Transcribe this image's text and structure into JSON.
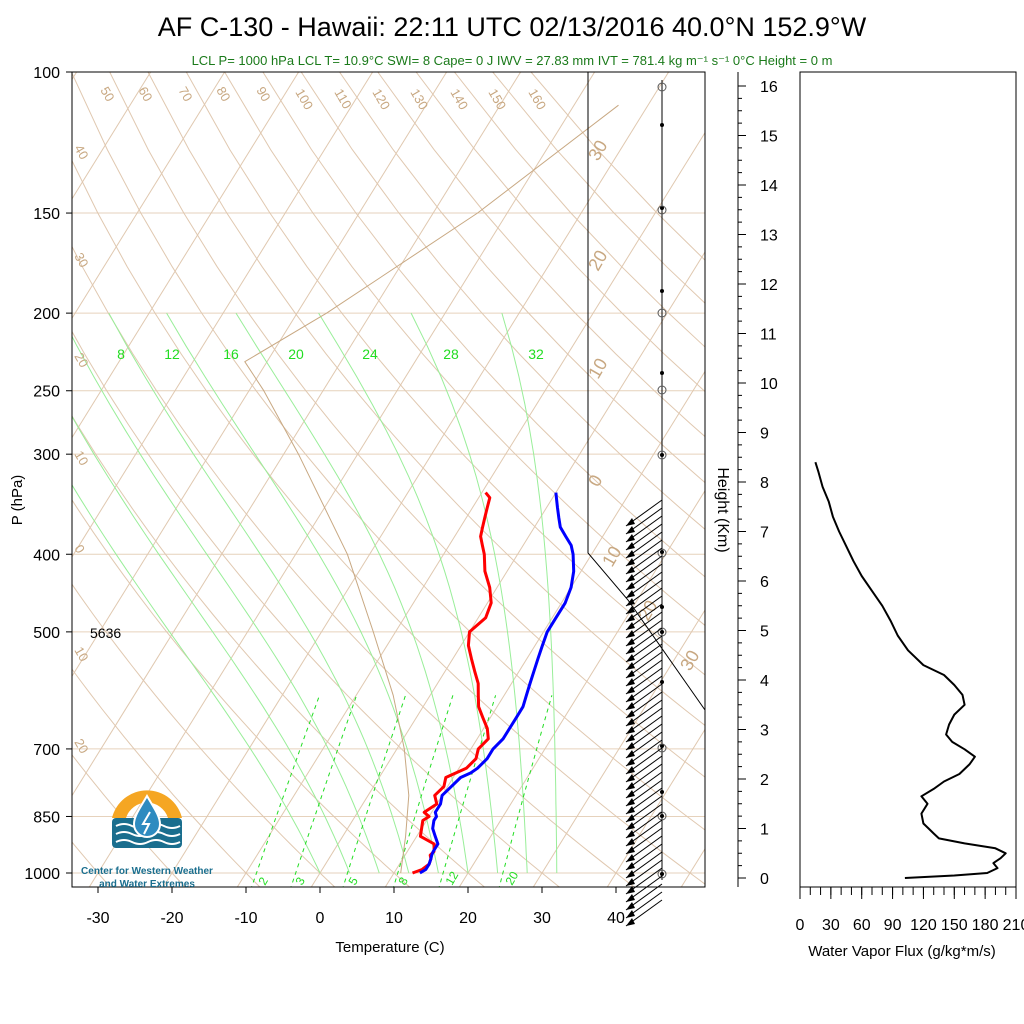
{
  "title": "AF C-130 - Hawaii: 22:11 UTC 02/13/2016  40.0°N 152.9°W",
  "subtitle": "LCL P= 1000 hPa  LCL T= 10.9°C  SWI= 8  Cape= 0 J  IWV = 27.83 mm  IVT = 781.4 kg m⁻¹ s⁻¹  0°C Height = 0 m",
  "logo": {
    "line1": "Center for Western Weather",
    "line2": "and Water Extremes",
    "colors": {
      "sun": "#f5a623",
      "water": "#1a6e8e",
      "drop": "#2e8bc0"
    }
  },
  "colors": {
    "temperature": "#ff0000",
    "dewpoint": "#0000ff",
    "parcel": "#c8a882",
    "isotherm": "#e0c8b0",
    "mixing_ratio": "#22dd22",
    "moist_adiabat": "#99ee99",
    "wvflux": "#000000"
  },
  "annotation_height_500": "5636",
  "chart_data": [
    {
      "type": "line",
      "name": "skewt",
      "xlabel": "Temperature (C)",
      "ylabel": "P (hPa)",
      "x_ticks": [
        "-30",
        "-20",
        "-10",
        "0",
        "10",
        "20",
        "30",
        "40"
      ],
      "y_ticks": [
        "100",
        "150",
        "200",
        "250",
        "300",
        "400",
        "500",
        "700",
        "850",
        "1000"
      ],
      "xlim": [
        -33,
        50
      ],
      "ylim": [
        1050,
        100
      ],
      "y_scale": "log",
      "dry_adiabat_labels": [
        "50",
        "60",
        "70",
        "80",
        "90",
        "100",
        "110",
        "120",
        "130",
        "140",
        "150",
        "160"
      ],
      "isotherm_side_labels": [
        "40",
        "30",
        "20",
        "10",
        "0",
        "10",
        "20"
      ],
      "isotherm_right_labels": [
        "30",
        "20",
        "10",
        "0",
        "10",
        "20",
        "30"
      ],
      "mixing_ratio_top_labels": [
        "8",
        "12",
        "16",
        "20",
        "24",
        "28",
        "32"
      ],
      "mixing_ratio_bottom_labels": [
        "2",
        "3",
        "5",
        "8",
        "12",
        "20"
      ],
      "series": [
        {
          "key": "temperature",
          "pressure": [
            1000,
            990,
            975,
            960,
            950,
            940,
            920,
            900,
            880,
            860,
            850,
            840,
            820,
            800,
            780,
            760,
            750,
            740,
            720,
            700,
            680,
            660,
            640,
            620,
            600,
            580,
            560,
            540,
            520,
            500,
            480,
            460,
            440,
            420,
            400,
            390,
            380,
            370,
            360,
            350,
            340,
            335
          ],
          "temp": [
            12.5,
            13.5,
            14.0,
            13.8,
            13.4,
            13.6,
            13.0,
            10.5,
            10.0,
            9.5,
            10.0,
            9.0,
            10.0,
            9.0,
            9.5,
            9.0,
            10.0,
            11.0,
            11.5,
            11.0,
            11.5,
            10.5,
            9.0,
            7.5,
            6.5,
            5.5,
            4.0,
            2.5,
            1.0,
            0.0,
            1.0,
            0.5,
            -1.0,
            -3.0,
            -4.5,
            -5.5,
            -6.5,
            -7.0,
            -7.5,
            -8.0,
            -8.5,
            -9.5
          ]
        },
        {
          "key": "dewpoint",
          "pressure": [
            1000,
            990,
            975,
            960,
            950,
            940,
            920,
            900,
            880,
            860,
            850,
            840,
            820,
            800,
            780,
            760,
            750,
            740,
            720,
            700,
            680,
            660,
            640,
            620,
            600,
            580,
            560,
            540,
            520,
            500,
            480,
            460,
            440,
            420,
            400,
            390,
            380,
            370,
            360,
            350,
            340,
            335
          ],
          "temp": [
            13.5,
            14.0,
            14.0,
            13.8,
            13.6,
            13.5,
            13.5,
            12.5,
            11.5,
            11.0,
            11.0,
            10.5,
            10.5,
            10.0,
            10.5,
            11.0,
            12.0,
            12.5,
            13.0,
            13.0,
            13.5,
            13.5,
            13.5,
            13.5,
            13.0,
            12.5,
            12.0,
            11.5,
            11.0,
            10.5,
            10.5,
            10.5,
            10.0,
            9.0,
            7.5,
            6.5,
            5.0,
            3.5,
            2.5,
            1.5,
            0.5,
            0.0
          ]
        },
        {
          "key": "parcel",
          "pressure": [
            1000,
            900,
            800,
            700,
            600,
            500,
            400,
            300,
            250,
            230,
            200,
            150,
            110
          ],
          "temp": [
            10.9,
            8.5,
            5.5,
            1.0,
            -5.0,
            -13.0,
            -23.0,
            -38.0,
            -48.0,
            -53.0,
            -46.0,
            -34.0,
            -24.0
          ]
        }
      ]
    },
    {
      "type": "line",
      "name": "water_vapor_flux",
      "xlabel": "Water Vapor Flux (g/kg*m/s)",
      "ylabel": "Height (Km)",
      "x_ticks": [
        "0",
        "30",
        "60",
        "90",
        "120",
        "150",
        "180",
        "210"
      ],
      "y_ticks": [
        "0",
        "1",
        "2",
        "3",
        "4",
        "5",
        "6",
        "7",
        "8",
        "9",
        "10",
        "11",
        "12",
        "13",
        "14",
        "15",
        "16"
      ],
      "xlim": [
        0,
        210
      ],
      "ylim": [
        -0.3,
        16.4
      ],
      "height_km": [
        0.0,
        0.05,
        0.1,
        0.2,
        0.3,
        0.4,
        0.5,
        0.6,
        0.7,
        0.8,
        0.9,
        1.0,
        1.1,
        1.3,
        1.5,
        1.65,
        1.8,
        1.95,
        2.1,
        2.3,
        2.45,
        2.6,
        2.75,
        2.9,
        3.1,
        3.3,
        3.5,
        3.7,
        3.9,
        4.1,
        4.3,
        4.6,
        4.9,
        5.2,
        5.5,
        5.8,
        6.1,
        6.4,
        6.7,
        7.0,
        7.3,
        7.6,
        7.9,
        8.2,
        8.4
      ],
      "flux": [
        102,
        150,
        182,
        192,
        188,
        195,
        200,
        190,
        160,
        135,
        130,
        125,
        120,
        118,
        124,
        118,
        130,
        140,
        155,
        165,
        170,
        160,
        148,
        142,
        145,
        150,
        160,
        158,
        150,
        140,
        120,
        105,
        95,
        88,
        80,
        70,
        60,
        52,
        45,
        38,
        32,
        28,
        22,
        18,
        15
      ]
    }
  ]
}
